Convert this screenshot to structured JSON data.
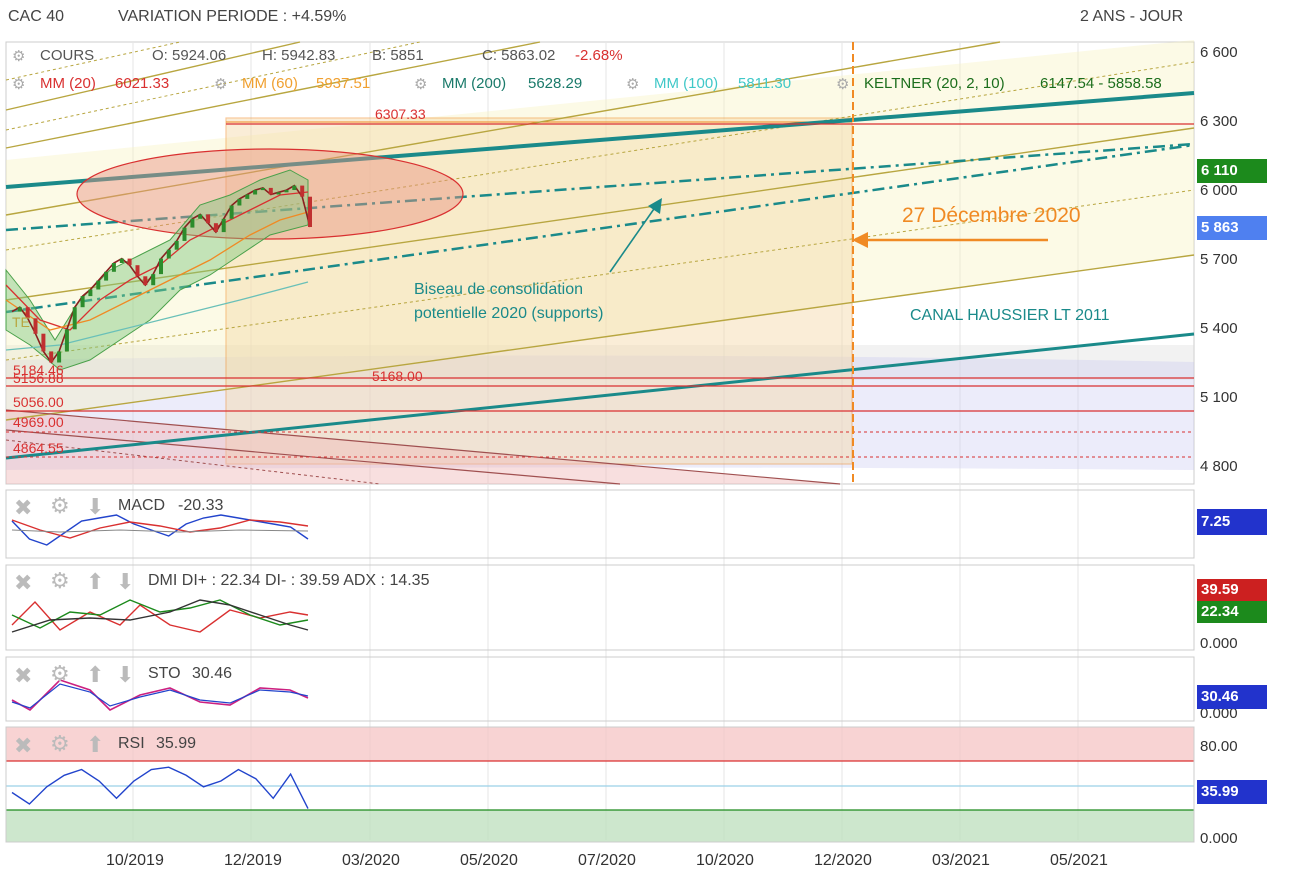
{
  "header": {
    "instrument": "CAC 40",
    "variation": "VARIATION PERIODE : +4.59%",
    "period": "2 ANS - JOUR"
  },
  "legend": {
    "cours": "COURS",
    "open": "O: 5924.06",
    "high": "H: 5942.83",
    "low": "B: 5851",
    "close": "C: 5863.02",
    "change": "-2.68%",
    "mm20": "MM (20)",
    "mm20_val": "6021.33",
    "mm60": "MM (60)",
    "mm60_val": "5937.51",
    "mm200": "MM (200)",
    "mm200_val": "5628.29",
    "mm100": "MM (100)",
    "mm100_val": "5811.30",
    "keltner": "KELTNER (20, 2, 10)",
    "keltner_val": "6147.54 - 5858.58"
  },
  "annotations": {
    "date_label": "27 Décembre 2020",
    "biseau_line1": "Biseau de consolidation",
    "biseau_line2": "potentielle 2020 (supports)",
    "canal": "CANAL HAUSSIER LT 2011",
    "level_top": "6307.33",
    "level_mid": "5168.00",
    "left_levels": [
      "5184.46",
      "5156.88",
      "5056.00",
      "4969.00",
      "4864.55"
    ],
    "te_label": "TE"
  },
  "badges": {
    "price_high": "6 110",
    "price_last": "5 863",
    "macd": "7.25",
    "dmi_neg": "39.59",
    "dmi_pos": "22.34",
    "sto": "30.46",
    "rsi": "35.99"
  },
  "colors": {
    "teal": "#1a8a8a",
    "orange": "#f08a24",
    "red": "#d93030",
    "green": "#1c8a1c",
    "blue": "#2244cc",
    "olive": "#b8a640"
  },
  "panels": {
    "macd": {
      "name": "MACD",
      "value": "-20.33"
    },
    "dmi": {
      "text": "DMI DI+ : 22.34 DI- : 39.59 ADX : 14.35",
      "zero": "0.000"
    },
    "sto": {
      "name": "STO",
      "value": "30.46",
      "zero": "0.000"
    },
    "rsi": {
      "name": "RSI",
      "value": "35.99",
      "top": "80.00",
      "zero": "0.000"
    }
  },
  "chart_data": {
    "type": "line",
    "title": "CAC 40",
    "y_ticks": [
      "6 600",
      "6 300",
      "6 000",
      "5 700",
      "5 400",
      "5 100",
      "4 800"
    ],
    "x_ticks": [
      "10/2019",
      "12/2019",
      "03/2020",
      "05/2020",
      "07/2020",
      "10/2020",
      "12/2020",
      "03/2021",
      "05/2021"
    ],
    "ylim": [
      4700,
      6700
    ],
    "horizontal_levels": [
      6307.33,
      5168.0,
      5184.46,
      5156.88,
      5056.0,
      4969.0,
      4864.55
    ],
    "series": [
      {
        "name": "COURS",
        "values": [
          5480,
          5500,
          5450,
          5380,
          5300,
          5250,
          5300,
          5400,
          5500,
          5550,
          5580,
          5620,
          5660,
          5700,
          5720,
          5690,
          5640,
          5600,
          5650,
          5720,
          5760,
          5800,
          5860,
          5900,
          5920,
          5880,
          5840,
          5900,
          5960,
          5990,
          6010,
          6030,
          6040,
          6010,
          6020,
          6030,
          6050,
          6000,
          5863
        ]
      },
      {
        "name": "MACD",
        "values": [
          10,
          -20,
          -30,
          -10,
          10,
          15,
          20,
          5,
          -5,
          -15,
          5,
          15,
          20,
          15,
          10,
          5,
          0,
          -20
        ]
      },
      {
        "name": "RSI",
        "values": [
          50,
          40,
          55,
          65,
          70,
          60,
          45,
          60,
          70,
          72,
          65,
          55,
          60,
          70,
          62,
          45,
          66,
          36
        ]
      }
    ]
  }
}
